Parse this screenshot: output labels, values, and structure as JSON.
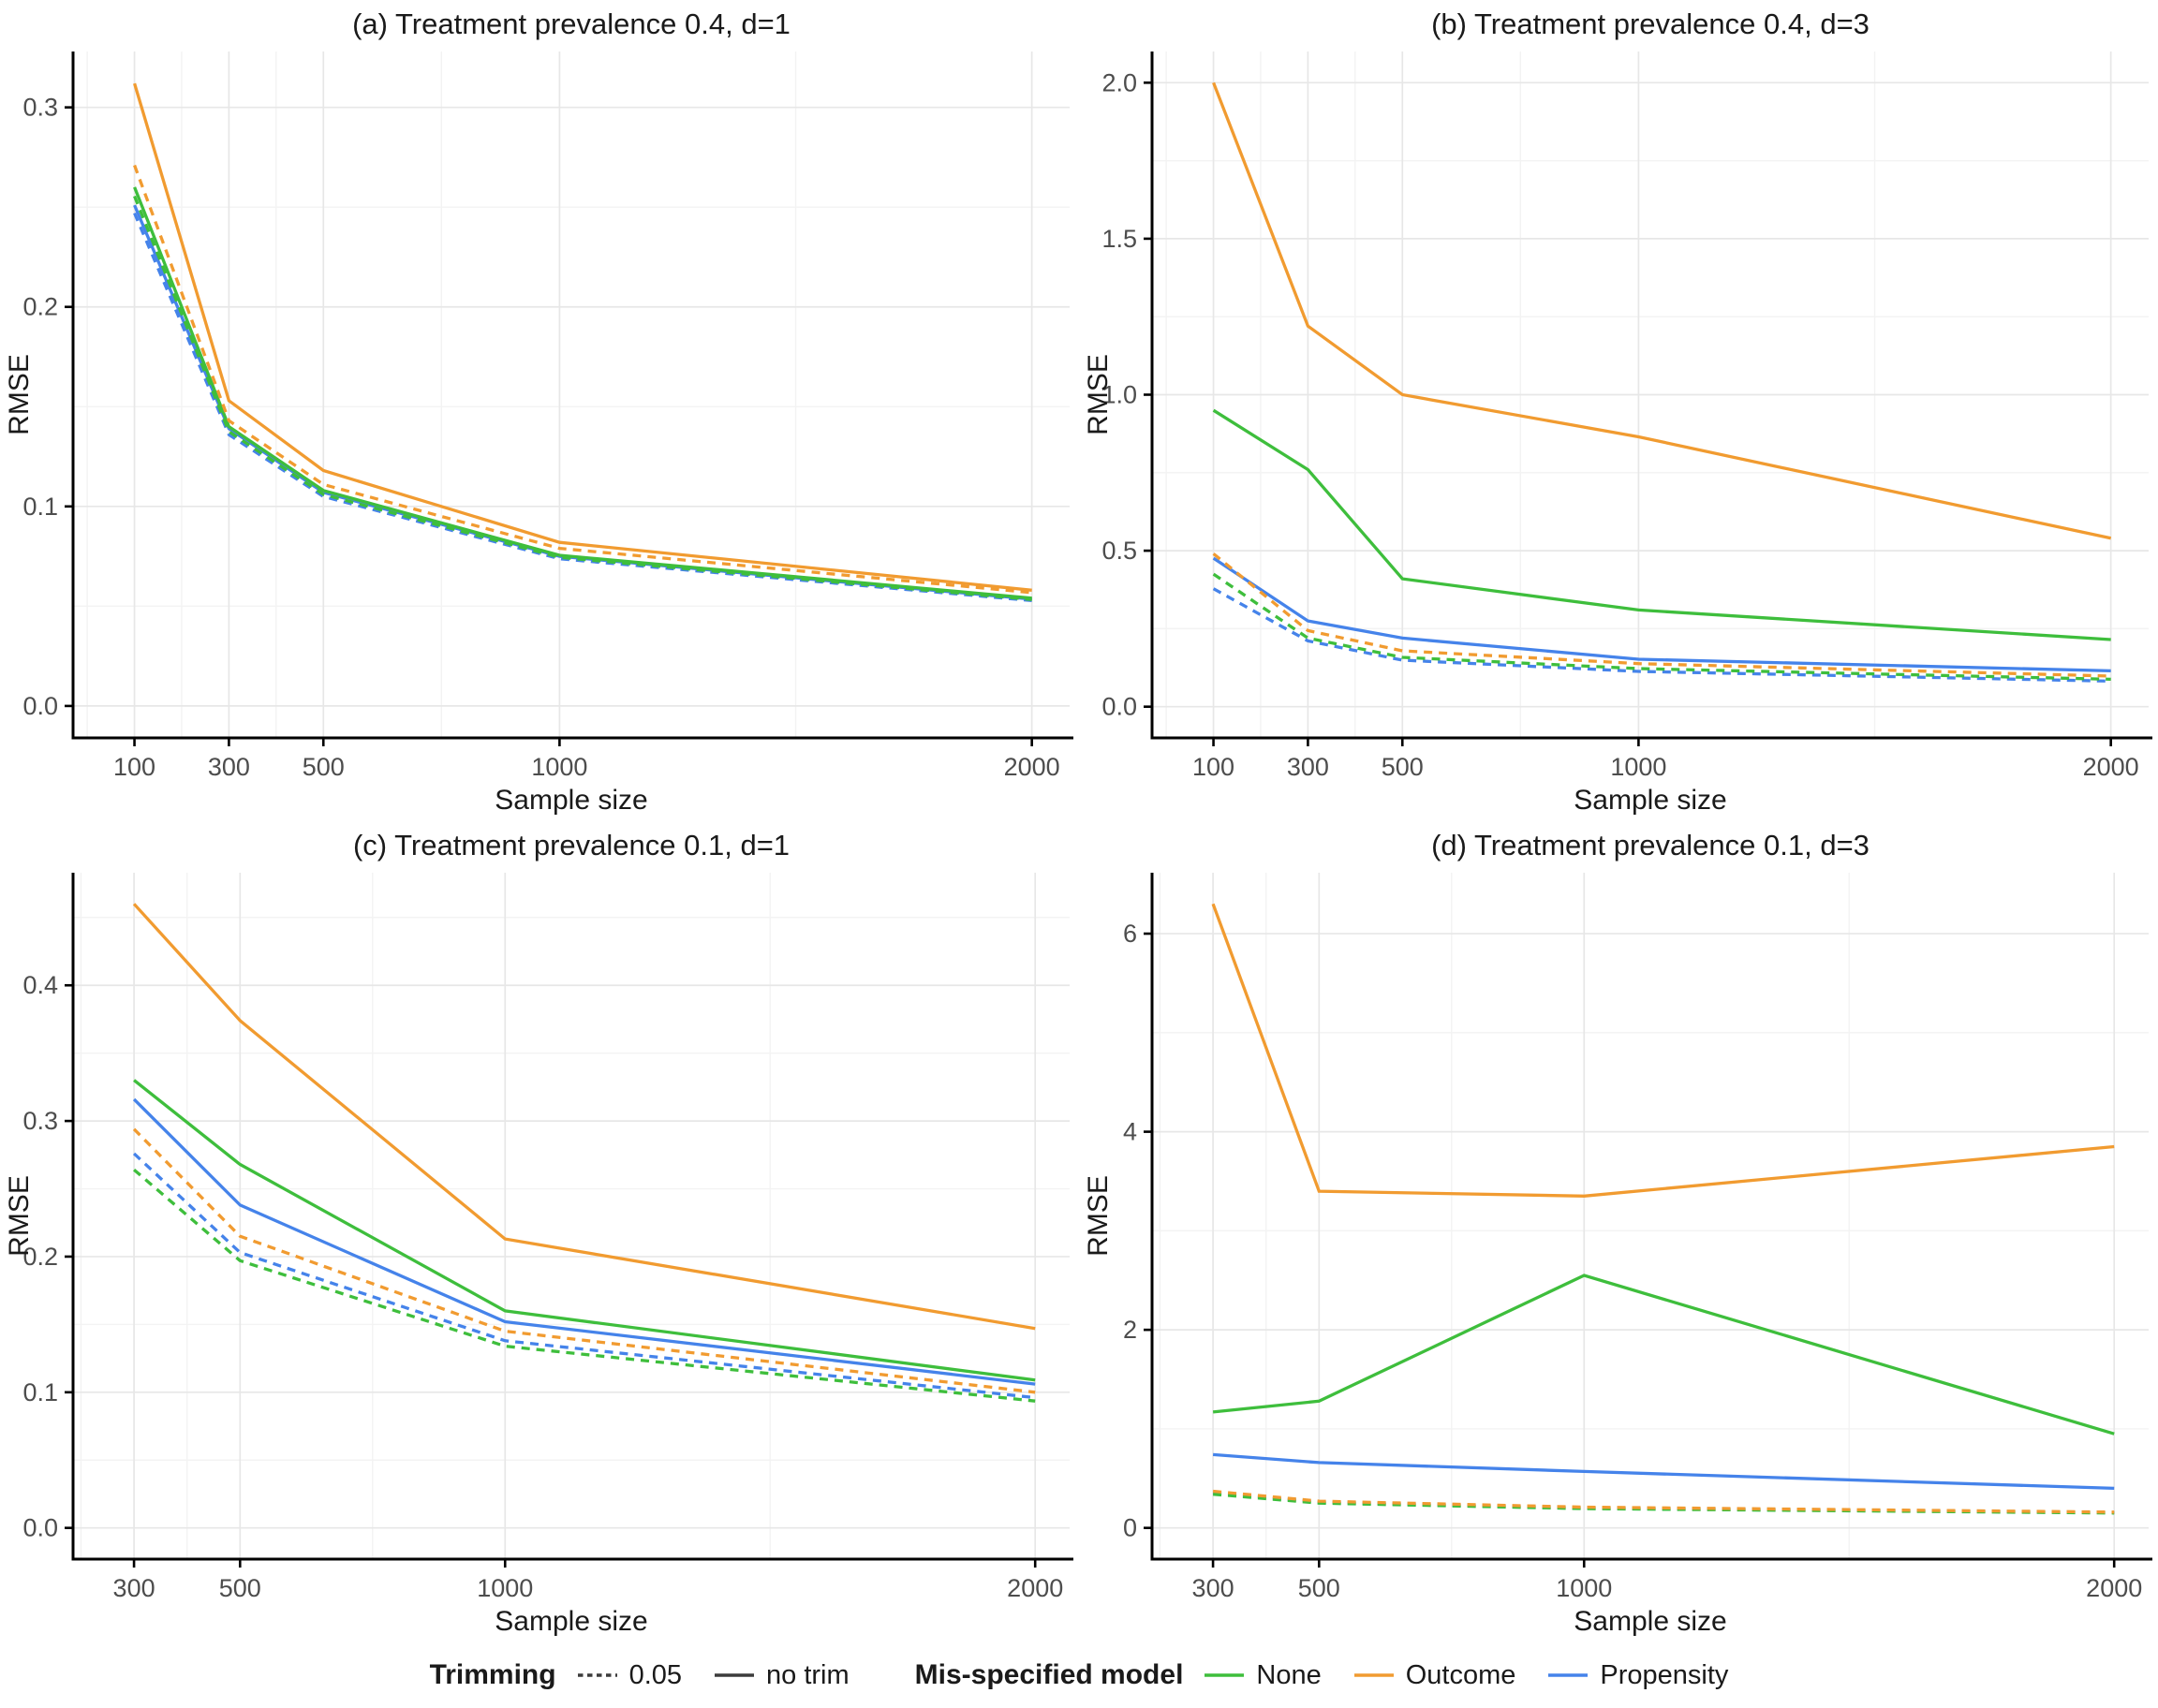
{
  "figure": {
    "colors": {
      "none": "#3EBE3C",
      "outcome": "#F19B30",
      "propensity": "#4583EA"
    },
    "grid_major_color": "#E7E7E7",
    "grid_minor_color": "#F3F3F3",
    "axis_color": "#000000",
    "tick_label_color": "#4D4D4D",
    "title_color": "#1A1A1A",
    "trim_swatch_color": "#3C3C3C"
  },
  "legend": {
    "trimming": {
      "title": "Trimming",
      "items": [
        {
          "label": "0.05",
          "dashed": true
        },
        {
          "label": "no trim",
          "dashed": false
        }
      ]
    },
    "model": {
      "title": "Mis-specified model",
      "items": [
        {
          "label": "None",
          "key": "none"
        },
        {
          "label": "Outcome",
          "key": "outcome"
        },
        {
          "label": "Propensity",
          "key": "propensity"
        }
      ]
    }
  },
  "chart_data": [
    {
      "id": "a",
      "type": "line",
      "title": "(a) Treatment prevalence 0.4, d=1",
      "xlabel": "Sample size",
      "ylabel": "RMSE",
      "x": [
        100,
        300,
        500,
        1000,
        2000
      ],
      "xticks": [
        100,
        300,
        500,
        1000,
        2000
      ],
      "xminor": [
        0,
        200,
        400,
        750,
        1500
      ],
      "yticks": [
        0,
        0.1,
        0.2,
        0.3
      ],
      "ytick_labels": [
        "0.0",
        "0.1",
        "0.2",
        "0.3"
      ],
      "yminor": [
        0.05,
        0.15,
        0.25
      ],
      "xdomain": [
        -30,
        2080
      ],
      "ydomain": [
        -0.016,
        0.328
      ],
      "grid": true,
      "legend_position": "bottom-shared",
      "series": [
        {
          "name": "Propensity / 0.05",
          "model": "propensity",
          "trim": "0.05",
          "dashed": true,
          "values": [
            0.247,
            0.136,
            0.105,
            0.0738,
            0.0528
          ]
        },
        {
          "name": "Propensity / no trim",
          "model": "propensity",
          "trim": "no trim",
          "dashed": false,
          "values": [
            0.251,
            0.139,
            0.107,
            0.075,
            0.0535
          ]
        },
        {
          "name": "None / 0.05",
          "model": "none",
          "trim": "0.05",
          "dashed": true,
          "values": [
            0.2555,
            0.1375,
            0.106,
            0.0745,
            0.0533
          ]
        },
        {
          "name": "None / no trim",
          "model": "none",
          "trim": "no trim",
          "dashed": false,
          "values": [
            0.26,
            0.14,
            0.108,
            0.0755,
            0.054
          ]
        },
        {
          "name": "Outcome / 0.05",
          "model": "outcome",
          "trim": "0.05",
          "dashed": true,
          "values": [
            0.271,
            0.143,
            0.111,
            0.079,
            0.0568
          ]
        },
        {
          "name": "Outcome / no trim",
          "model": "outcome",
          "trim": "no trim",
          "dashed": false,
          "values": [
            0.312,
            0.153,
            0.118,
            0.082,
            0.058
          ]
        }
      ]
    },
    {
      "id": "b",
      "type": "line",
      "title": "(b) Treatment prevalence 0.4, d=3",
      "xlabel": "Sample size",
      "ylabel": "RMSE",
      "x": [
        100,
        300,
        500,
        1000,
        2000
      ],
      "xticks": [
        100,
        300,
        500,
        1000,
        2000
      ],
      "xminor": [
        0,
        200,
        400,
        750,
        1500
      ],
      "yticks": [
        0,
        0.5,
        1,
        1.5,
        2
      ],
      "ytick_labels": [
        "0.0",
        "0.5",
        "1.0",
        "1.5",
        "2.0"
      ],
      "yminor": [
        0.25,
        0.75,
        1.25,
        1.75
      ],
      "xdomain": [
        -30,
        2080
      ],
      "ydomain": [
        -0.1,
        2.1
      ],
      "grid": true,
      "legend_position": "bottom-shared",
      "series": [
        {
          "name": "Propensity / 0.05",
          "model": "propensity",
          "trim": "0.05",
          "dashed": true,
          "values": [
            0.378,
            0.211,
            0.149,
            0.113,
            0.082
          ]
        },
        {
          "name": "Propensity / no trim",
          "model": "propensity",
          "trim": "no trim",
          "dashed": false,
          "values": [
            0.476,
            0.275,
            0.22,
            0.152,
            0.115
          ]
        },
        {
          "name": "None / 0.05",
          "model": "none",
          "trim": "0.05",
          "dashed": true,
          "values": [
            0.425,
            0.22,
            0.158,
            0.122,
            0.088
          ]
        },
        {
          "name": "None / no trim",
          "model": "none",
          "trim": "no trim",
          "dashed": false,
          "values": [
            0.95,
            0.76,
            0.41,
            0.31,
            0.215
          ]
        },
        {
          "name": "Outcome / 0.05",
          "model": "outcome",
          "trim": "0.05",
          "dashed": true,
          "values": [
            0.49,
            0.244,
            0.179,
            0.138,
            0.098
          ]
        },
        {
          "name": "Outcome / no trim",
          "model": "outcome",
          "trim": "no trim",
          "dashed": false,
          "values": [
            2.0,
            1.22,
            1.0,
            0.865,
            0.54
          ]
        }
      ]
    },
    {
      "id": "c",
      "type": "line",
      "title": "(c) Treatment prevalence 0.1, d=1",
      "xlabel": "Sample size",
      "ylabel": "RMSE",
      "x": [
        300,
        500,
        1000,
        2000
      ],
      "xticks": [
        300,
        500,
        1000,
        2000
      ],
      "xminor": [
        200,
        400,
        750,
        1500
      ],
      "yticks": [
        0,
        0.1,
        0.2,
        0.3,
        0.4
      ],
      "ytick_labels": [
        "0.0",
        "0.1",
        "0.2",
        "0.3",
        "0.4"
      ],
      "yminor": [
        0.05,
        0.15,
        0.25,
        0.35,
        0.45
      ],
      "xdomain": [
        185,
        2065
      ],
      "ydomain": [
        -0.023,
        0.483
      ],
      "grid": true,
      "legend_position": "bottom-shared",
      "series": [
        {
          "name": "Propensity / 0.05",
          "model": "propensity",
          "trim": "0.05",
          "dashed": true,
          "values": [
            0.276,
            0.203,
            0.138,
            0.096
          ]
        },
        {
          "name": "Propensity / no trim",
          "model": "propensity",
          "trim": "no trim",
          "dashed": false,
          "values": [
            0.316,
            0.238,
            0.152,
            0.106
          ]
        },
        {
          "name": "None / 0.05",
          "model": "none",
          "trim": "0.05",
          "dashed": true,
          "values": [
            0.264,
            0.197,
            0.134,
            0.0935
          ]
        },
        {
          "name": "None / no trim",
          "model": "none",
          "trim": "no trim",
          "dashed": false,
          "values": [
            0.33,
            0.268,
            0.16,
            0.109
          ]
        },
        {
          "name": "Outcome / 0.05",
          "model": "outcome",
          "trim": "0.05",
          "dashed": true,
          "values": [
            0.294,
            0.215,
            0.145,
            0.1
          ]
        },
        {
          "name": "Outcome / no trim",
          "model": "outcome",
          "trim": "no trim",
          "dashed": false,
          "values": [
            0.46,
            0.374,
            0.213,
            0.147
          ]
        }
      ]
    },
    {
      "id": "d",
      "type": "line",
      "title": "(d) Treatment prevalence 0.1, d=3",
      "xlabel": "Sample size",
      "ylabel": "RMSE",
      "x": [
        300,
        500,
        1000,
        2000
      ],
      "xticks": [
        300,
        500,
        1000,
        2000
      ],
      "xminor": [
        200,
        400,
        750,
        1500
      ],
      "yticks": [
        0,
        2,
        4,
        6
      ],
      "ytick_labels": [
        "0",
        "2",
        "4",
        "6"
      ],
      "yminor": [
        1,
        3,
        5
      ],
      "xdomain": [
        185,
        2065
      ],
      "ydomain": [
        -0.315,
        6.615
      ],
      "grid": true,
      "legend_position": "bottom-shared",
      "series": [
        {
          "name": "Propensity / 0.05",
          "model": "propensity",
          "trim": "0.05",
          "dashed": true,
          "values": [
            0.355,
            0.26,
            0.2,
            0.155
          ]
        },
        {
          "name": "Propensity / no trim",
          "model": "propensity",
          "trim": "no trim",
          "dashed": false,
          "values": [
            0.74,
            0.66,
            0.57,
            0.4
          ]
        },
        {
          "name": "None / 0.05",
          "model": "none",
          "trim": "0.05",
          "dashed": true,
          "values": [
            0.34,
            0.25,
            0.195,
            0.15
          ]
        },
        {
          "name": "None / no trim",
          "model": "none",
          "trim": "no trim",
          "dashed": false,
          "values": [
            1.17,
            1.28,
            2.55,
            0.95
          ]
        },
        {
          "name": "Outcome / 0.05",
          "model": "outcome",
          "trim": "0.05",
          "dashed": true,
          "values": [
            0.37,
            0.27,
            0.21,
            0.16
          ]
        },
        {
          "name": "Outcome / no trim",
          "model": "outcome",
          "trim": "no trim",
          "dashed": false,
          "values": [
            6.3,
            3.4,
            3.35,
            3.85
          ]
        }
      ]
    }
  ]
}
